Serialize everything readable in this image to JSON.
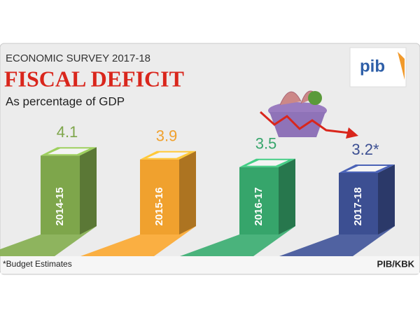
{
  "chart_data": {
    "type": "bar3d",
    "supertitle": "ECONOMIC SURVEY 2017-18",
    "title": "FISCAL DEFICIT",
    "subtitle": "As percentage of GDP",
    "logo": "pib",
    "categories": [
      "2014-15",
      "2015-16",
      "2016-17",
      "2017-18"
    ],
    "values": [
      4.1,
      3.9,
      3.5,
      3.2
    ],
    "value_labels": [
      "4.1",
      "3.9",
      "3.5",
      "3.2*"
    ],
    "colors": [
      "#7ea64b",
      "#f0a12e",
      "#36a56b",
      "#3c4f92"
    ],
    "footnote": "*Budget Estimates",
    "source": "PIB/KBK"
  }
}
